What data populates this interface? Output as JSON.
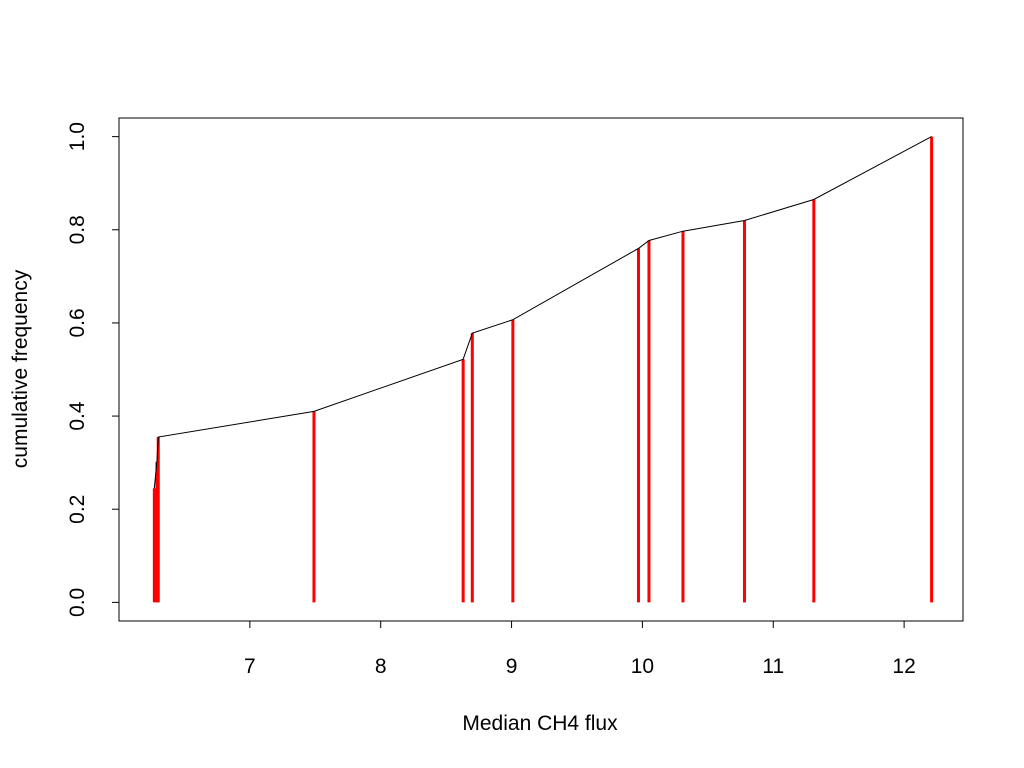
{
  "chart_data": {
    "type": "line",
    "title": "",
    "xlabel": "Median CH4 flux",
    "ylabel": "cumulative frequency",
    "xlim": [
      6.0,
      12.45
    ],
    "ylim": [
      -0.04,
      1.04
    ],
    "xticks": [
      7,
      8,
      9,
      10,
      11,
      12
    ],
    "xtick_labels": [
      "7",
      "8",
      "9",
      "10",
      "11",
      "12"
    ],
    "yticks": [
      0.0,
      0.2,
      0.4,
      0.6,
      0.8,
      1.0
    ],
    "ytick_labels": [
      "0.0",
      "0.2",
      "0.4",
      "0.6",
      "0.8",
      "1.0"
    ],
    "grid": false,
    "series": [
      {
        "type": "line",
        "x": [
          6.27,
          6.29,
          6.3,
          7.49,
          8.63,
          8.7,
          9.01,
          9.97,
          10.05,
          10.31,
          10.78,
          11.31,
          12.21
        ],
        "y": [
          0.245,
          0.302,
          0.355,
          0.41,
          0.522,
          0.578,
          0.607,
          0.76,
          0.777,
          0.797,
          0.82,
          0.865,
          1.0
        ],
        "color": "#000000"
      },
      {
        "type": "stems",
        "x": [
          6.27,
          6.29,
          6.3,
          7.49,
          8.63,
          8.7,
          9.01,
          9.97,
          10.05,
          10.31,
          10.78,
          11.31,
          12.21
        ],
        "y": [
          0.245,
          0.302,
          0.355,
          0.41,
          0.522,
          0.578,
          0.607,
          0.76,
          0.777,
          0.797,
          0.82,
          0.865,
          1.0
        ],
        "color": "#ff0000"
      }
    ]
  }
}
